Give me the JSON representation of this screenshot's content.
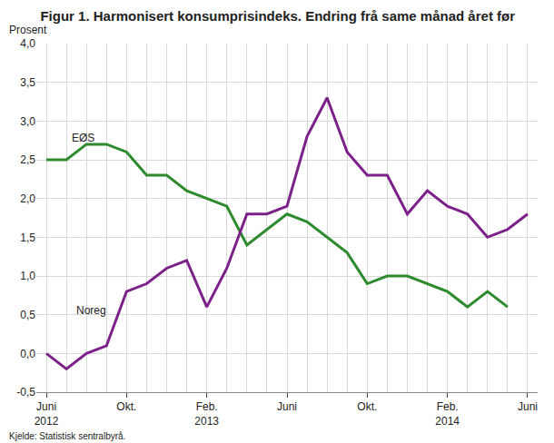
{
  "chart_data": {
    "type": "line",
    "title": "Figur 1. Harmonisert konsumprisindeks. Endring frå same månad året før",
    "ylabel": "Prosent",
    "source": "Kjelde: Statistisk sentralbyrå.",
    "categories": [
      "Juni 2012",
      null,
      null,
      null,
      "Okt.",
      null,
      null,
      null,
      "Feb. 2013",
      null,
      null,
      null,
      "Juni",
      null,
      null,
      null,
      "Okt.",
      null,
      null,
      null,
      "Feb. 2014",
      null,
      null,
      null,
      "Juni"
    ],
    "series": [
      {
        "name": "EØS",
        "color": "#2d8a2d",
        "values": [
          2.5,
          2.5,
          2.7,
          2.7,
          2.6,
          2.3,
          2.3,
          2.1,
          2.0,
          1.9,
          1.4,
          1.6,
          1.8,
          1.7,
          1.5,
          1.3,
          0.9,
          1.0,
          1.0,
          0.9,
          0.8,
          0.6,
          0.8,
          0.6,
          null
        ]
      },
      {
        "name": "Noreg",
        "color": "#7b2189",
        "values": [
          0.0,
          -0.2,
          0.0,
          0.1,
          0.8,
          0.9,
          1.1,
          1.2,
          0.6,
          1.1,
          1.8,
          1.8,
          1.9,
          2.8,
          3.3,
          2.6,
          2.3,
          2.3,
          1.8,
          2.1,
          1.9,
          1.8,
          1.5,
          1.6,
          1.8
        ]
      }
    ],
    "ylim": [
      -0.5,
      4.0
    ],
    "yticks": [
      {
        "value": -0.5,
        "label": "-0,5"
      },
      {
        "value": 0,
        "label": "0,0"
      },
      {
        "value": 0.5,
        "label": "0,5"
      },
      {
        "value": 1,
        "label": "1,0"
      },
      {
        "value": 1.5,
        "label": "1,5"
      },
      {
        "value": 2,
        "label": "2,0"
      },
      {
        "value": 2.5,
        "label": "2,5"
      },
      {
        "value": 3,
        "label": "3,0"
      },
      {
        "value": 3.5,
        "label": "3,5"
      },
      {
        "value": 4,
        "label": "4,0"
      }
    ],
    "grid": true
  }
}
